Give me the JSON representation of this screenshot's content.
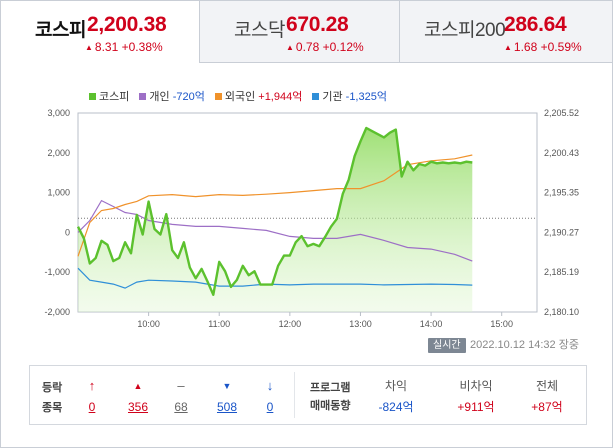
{
  "tabs": [
    {
      "name": "코스피",
      "price": "2,200.38",
      "change": "8.31",
      "pct": "+0.38%",
      "active": true
    },
    {
      "name": "코스닥",
      "price": "670.28",
      "change": "0.78",
      "pct": "+0.12%",
      "active": false
    },
    {
      "name": "코스피200",
      "price": "286.64",
      "change": "1.68",
      "pct": "+0.59%",
      "active": false
    }
  ],
  "legend": [
    {
      "label": "코스피",
      "value": "",
      "color": "#5cc12e"
    },
    {
      "label": "개인",
      "value": "-720억",
      "color": "#9d6fc6"
    },
    {
      "label": "외국인",
      "value": "+1,944억",
      "color": "#f0922b"
    },
    {
      "label": "기관",
      "value": "-1,325억",
      "color": "#2f8fd8"
    }
  ],
  "footer": {
    "realtime_label": "실시간",
    "timestamp": "2022.10.12 14:32 장중"
  },
  "stats": {
    "row1_label": "등락",
    "row2_label": "종목",
    "columns": [
      {
        "symbol": "↑",
        "value": "0",
        "color": "red",
        "icon": "upper-limit-icon"
      },
      {
        "symbol": "▲",
        "value": "356",
        "color": "red",
        "icon": "rise-icon"
      },
      {
        "symbol": "–",
        "value": "68",
        "color": "gray",
        "icon": "flat-icon"
      },
      {
        "symbol": "▼",
        "value": "508",
        "color": "blue",
        "icon": "fall-icon"
      },
      {
        "symbol": "↓",
        "value": "0",
        "color": "blue",
        "icon": "lower-limit-icon"
      }
    ],
    "program_label_1": "프로그램",
    "program_label_2": "매매동향",
    "program": [
      {
        "header": "차익",
        "value": "-824억",
        "color": "blue"
      },
      {
        "header": "비차익",
        "value": "+911억",
        "color": "red"
      },
      {
        "header": "전체",
        "value": "+87억",
        "color": "red"
      }
    ]
  },
  "chart_data": {
    "type": "line",
    "x_ticks": [
      "10:00",
      "11:00",
      "12:00",
      "13:00",
      "14:00",
      "15:00"
    ],
    "x_range": [
      "09:00",
      "15:30"
    ],
    "y_left": {
      "ticks": [
        "3,000",
        "2,000",
        "1,000",
        "0",
        "-1,000",
        "-2,000"
      ],
      "range": [
        -2000,
        3000
      ]
    },
    "y_right": {
      "ticks": [
        "2,205.52",
        "2,200.43",
        "2,195.35",
        "2,190.27",
        "2,185.19",
        "2,180.10"
      ],
      "range": [
        2180.1,
        2205.52
      ]
    },
    "reference_level": 2192.07,
    "series": [
      {
        "name": "코스피",
        "axis": "right",
        "color": "#5cc12e",
        "x": [
          "09:00",
          "09:05",
          "09:10",
          "09:15",
          "09:20",
          "09:25",
          "09:30",
          "09:35",
          "09:40",
          "09:45",
          "09:50",
          "09:55",
          "10:00",
          "10:05",
          "10:10",
          "10:15",
          "10:20",
          "10:25",
          "10:30",
          "10:35",
          "10:40",
          "10:45",
          "10:50",
          "10:55",
          "11:00",
          "11:05",
          "11:10",
          "11:15",
          "11:20",
          "11:25",
          "11:30",
          "11:35",
          "11:40",
          "11:45",
          "11:50",
          "11:55",
          "12:00",
          "12:05",
          "12:10",
          "12:15",
          "12:20",
          "12:25",
          "12:30",
          "12:35",
          "12:40",
          "12:45",
          "12:50",
          "12:55",
          "13:00",
          "13:05",
          "13:10",
          "13:15",
          "13:20",
          "13:25",
          "13:30",
          "13:35",
          "13:40",
          "13:45",
          "13:50",
          "13:55",
          "14:00",
          "14:05",
          "14:10",
          "14:15",
          "14:20",
          "14:25",
          "14:30",
          "14:35"
        ],
        "y": [
          2191.0,
          2189.5,
          2186.3,
          2187.0,
          2189.2,
          2188.7,
          2186.6,
          2187.0,
          2189.0,
          2187.6,
          2192.5,
          2190.0,
          2194.2,
          2190.7,
          2190.0,
          2192.6,
          2188.0,
          2187.0,
          2189.0,
          2185.8,
          2184.4,
          2185.6,
          2184.0,
          2182.3,
          2186.5,
          2185.3,
          2183.3,
          2184.2,
          2186.0,
          2184.8,
          2185.3,
          2183.6,
          2183.6,
          2183.6,
          2186.0,
          2187.3,
          2187.3,
          2189.0,
          2189.8,
          2188.5,
          2188.8,
          2188.5,
          2189.7,
          2191.0,
          2192.0,
          2195.2,
          2197.0,
          2200.0,
          2201.9,
          2203.6,
          2203.2,
          2202.8,
          2202.4,
          2203.0,
          2203.4,
          2197.4,
          2199.3,
          2198.2,
          2199.0,
          2198.8,
          2199.3,
          2199.1,
          2199.2,
          2199.1,
          2199.2,
          2199.1,
          2199.3,
          2199.2
        ]
      },
      {
        "name": "개인",
        "axis": "left",
        "color": "#9d6fc6",
        "value_label": "-720억",
        "x": [
          "09:00",
          "09:10",
          "09:20",
          "09:30",
          "09:40",
          "09:50",
          "10:00",
          "10:20",
          "10:40",
          "11:00",
          "11:20",
          "11:40",
          "12:00",
          "12:20",
          "12:40",
          "13:00",
          "13:20",
          "13:40",
          "14:00",
          "14:20",
          "14:35"
        ],
        "y": [
          0,
          300,
          800,
          650,
          500,
          450,
          300,
          200,
          150,
          150,
          100,
          50,
          -100,
          -150,
          -150,
          -50,
          -200,
          -380,
          -420,
          -550,
          -720
        ]
      },
      {
        "name": "외국인",
        "axis": "left",
        "color": "#f0922b",
        "value_label": "+1,944억",
        "x": [
          "09:00",
          "09:10",
          "09:20",
          "09:30",
          "09:40",
          "09:50",
          "10:00",
          "10:20",
          "10:40",
          "11:00",
          "11:20",
          "11:40",
          "12:00",
          "12:20",
          "12:40",
          "13:00",
          "13:20",
          "13:40",
          "14:00",
          "14:20",
          "14:35"
        ],
        "y": [
          -600,
          250,
          550,
          600,
          700,
          780,
          920,
          950,
          900,
          950,
          930,
          960,
          1000,
          1050,
          1100,
          1100,
          1300,
          1700,
          1800,
          1850,
          1944
        ]
      },
      {
        "name": "기관",
        "axis": "left",
        "color": "#2f8fd8",
        "value_label": "-1,325억",
        "x": [
          "09:00",
          "09:10",
          "09:20",
          "09:30",
          "09:40",
          "09:50",
          "10:00",
          "10:20",
          "10:40",
          "11:00",
          "11:20",
          "11:40",
          "12:00",
          "12:20",
          "12:40",
          "13:00",
          "13:20",
          "13:40",
          "14:00",
          "14:20",
          "14:35"
        ],
        "y": [
          -900,
          -1200,
          -1250,
          -1300,
          -1400,
          -1250,
          -1200,
          -1220,
          -1250,
          -1350,
          -1350,
          -1300,
          -1320,
          -1300,
          -1300,
          -1300,
          -1320,
          -1310,
          -1300,
          -1310,
          -1325
        ]
      }
    ]
  }
}
